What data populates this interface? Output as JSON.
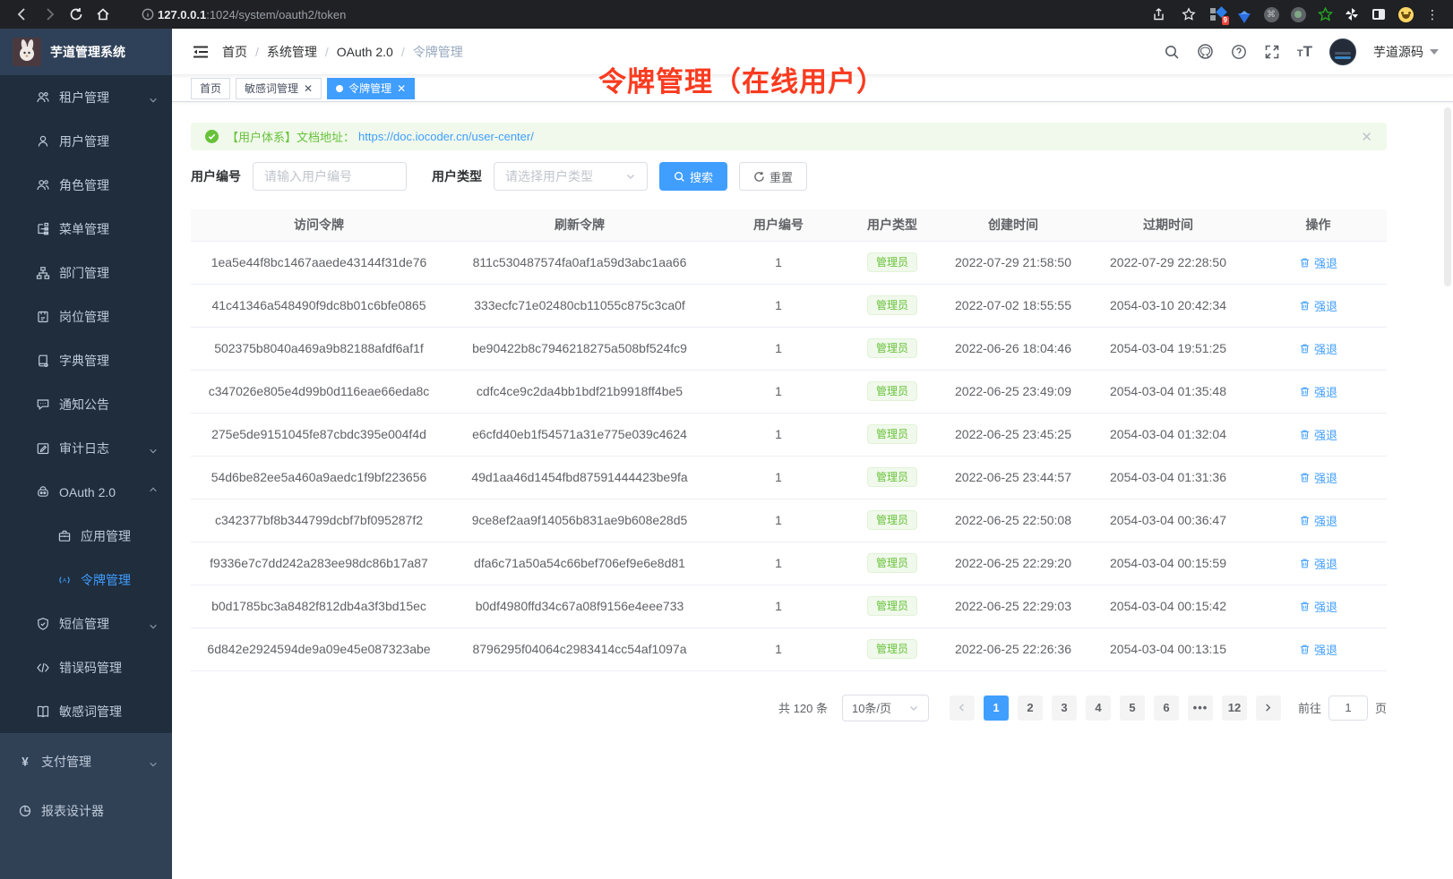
{
  "colors": {
    "accent": "#409eff",
    "success": "#67c23a",
    "annotation_red": "#f93b20"
  },
  "browser": {
    "url_host": "127.0.0.1",
    "url_rest": ":1024/system/oauth2/token",
    "extension_badge": "9"
  },
  "sidebar": {
    "title": "芋道管理系统",
    "expanded_items": [
      {
        "label": "租户管理",
        "icon": "tenants-icon",
        "level": 1,
        "chevron": "down",
        "active": false
      },
      {
        "label": "用户管理",
        "icon": "user-icon",
        "level": 1,
        "active": false
      },
      {
        "label": "角色管理",
        "icon": "roles-icon",
        "level": 1,
        "active": false
      },
      {
        "label": "菜单管理",
        "icon": "menu-tree-icon",
        "level": 1,
        "active": false
      },
      {
        "label": "部门管理",
        "icon": "org-icon",
        "level": 1,
        "active": false
      },
      {
        "label": "岗位管理",
        "icon": "post-icon",
        "level": 1,
        "active": false
      },
      {
        "label": "字典管理",
        "icon": "dict-icon",
        "level": 1,
        "active": false
      },
      {
        "label": "通知公告",
        "icon": "notice-icon",
        "level": 1,
        "active": false
      },
      {
        "label": "审计日志",
        "icon": "audit-icon",
        "level": 1,
        "chevron": "down",
        "active": false
      },
      {
        "label": "OAuth 2.0",
        "icon": "oauth-icon",
        "level": 1,
        "chevron": "up",
        "active": false
      },
      {
        "label": "应用管理",
        "icon": "app-icon",
        "level": 2,
        "active": false
      },
      {
        "label": "令牌管理",
        "icon": "token-icon",
        "level": 2,
        "active": true
      },
      {
        "label": "短信管理",
        "icon": "sms-icon",
        "level": 1,
        "chevron": "down",
        "active": false
      },
      {
        "label": "错误码管理",
        "icon": "errcode-icon",
        "level": 1,
        "active": false
      },
      {
        "label": "敏感词管理",
        "icon": "sensitive-icon",
        "level": 1,
        "active": false
      }
    ],
    "base_items": [
      {
        "label": "支付管理",
        "icon": "pay-icon",
        "level": 0,
        "chevron": "down",
        "active": false
      },
      {
        "label": "报表设计器",
        "icon": "report-icon",
        "level": 0,
        "active": false
      }
    ]
  },
  "navbar": {
    "breadcrumb": [
      "首页",
      "系统管理",
      "OAuth 2.0",
      "令牌管理"
    ],
    "username": "芋道源码"
  },
  "tags": [
    {
      "label": "首页",
      "closable": false,
      "active": false
    },
    {
      "label": "敏感词管理",
      "closable": true,
      "active": false
    },
    {
      "label": "令牌管理",
      "closable": true,
      "active": true
    }
  ],
  "annotation": {
    "text": "令牌管理（在线用户）"
  },
  "alert": {
    "text": "【用户体系】文档地址：",
    "link": "https://doc.iocoder.cn/user-center/"
  },
  "filters": {
    "user_id_label": "用户编号",
    "user_id_placeholder": "请输入用户编号",
    "user_type_label": "用户类型",
    "user_type_placeholder": "请选择用户类型",
    "search_label": "搜索",
    "reset_label": "重置"
  },
  "table": {
    "headers": [
      "访问令牌",
      "刷新令牌",
      "用户编号",
      "用户类型",
      "创建时间",
      "过期时间",
      "操作"
    ],
    "action_label": "强退",
    "rows": [
      {
        "access": "1ea5e44f8bc1467aaede43144f31de76",
        "refresh": "811c530487574fa0af1a59d3abc1aa66",
        "user_id": "1",
        "user_type": "管理员",
        "created": "2022-07-29 21:58:50",
        "expires": "2022-07-29 22:28:50"
      },
      {
        "access": "41c41346a548490f9dc8b01c6bfe0865",
        "refresh": "333ecfc71e02480cb11055c875c3ca0f",
        "user_id": "1",
        "user_type": "管理员",
        "created": "2022-07-02 18:55:55",
        "expires": "2054-03-10 20:42:34"
      },
      {
        "access": "502375b8040a469a9b82188afdf6af1f",
        "refresh": "be90422b8c7946218275a508bf524fc9",
        "user_id": "1",
        "user_type": "管理员",
        "created": "2022-06-26 18:04:46",
        "expires": "2054-03-04 19:51:25"
      },
      {
        "access": "c347026e805e4d99b0d116eae66eda8c",
        "refresh": "cdfc4ce9c2da4bb1bdf21b9918ff4be5",
        "user_id": "1",
        "user_type": "管理员",
        "created": "2022-06-25 23:49:09",
        "expires": "2054-03-04 01:35:48"
      },
      {
        "access": "275e5de9151045fe87cbdc395e004f4d",
        "refresh": "e6cfd40eb1f54571a31e775e039c4624",
        "user_id": "1",
        "user_type": "管理员",
        "created": "2022-06-25 23:45:25",
        "expires": "2054-03-04 01:32:04"
      },
      {
        "access": "54d6be82ee5a460a9aedc1f9bf223656",
        "refresh": "49d1aa46d1454fbd87591444423be9fa",
        "user_id": "1",
        "user_type": "管理员",
        "created": "2022-06-25 23:44:57",
        "expires": "2054-03-04 01:31:36"
      },
      {
        "access": "c342377bf8b344799dcbf7bf095287f2",
        "refresh": "9ce8ef2aa9f14056b831ae9b608e28d5",
        "user_id": "1",
        "user_type": "管理员",
        "created": "2022-06-25 22:50:08",
        "expires": "2054-03-04 00:36:47"
      },
      {
        "access": "f9336e7c7dd242a283ee98dc86b17a87",
        "refresh": "dfa6c71a50a54c66bef706ef9e6e8d81",
        "user_id": "1",
        "user_type": "管理员",
        "created": "2022-06-25 22:29:20",
        "expires": "2054-03-04 00:15:59"
      },
      {
        "access": "b0d1785bc3a8482f812db4a3f3bd15ec",
        "refresh": "b0df4980ffd34c67a08f9156e4eee733",
        "user_id": "1",
        "user_type": "管理员",
        "created": "2022-06-25 22:29:03",
        "expires": "2054-03-04 00:15:42"
      },
      {
        "access": "6d842e2924594de9a09e45e087323abe",
        "refresh": "8796295f04064c2983414cc54af1097a",
        "user_id": "1",
        "user_type": "管理员",
        "created": "2022-06-25 22:26:36",
        "expires": "2054-03-04 00:13:15"
      }
    ]
  },
  "pagination": {
    "total_label": "共 120 条",
    "page_size_label": "10条/页",
    "pages": [
      "1",
      "2",
      "3",
      "4",
      "5",
      "6",
      "···",
      "12"
    ],
    "active_page": "1",
    "goto_label": "前往",
    "goto_value": "1",
    "goto_suffix": "页"
  }
}
